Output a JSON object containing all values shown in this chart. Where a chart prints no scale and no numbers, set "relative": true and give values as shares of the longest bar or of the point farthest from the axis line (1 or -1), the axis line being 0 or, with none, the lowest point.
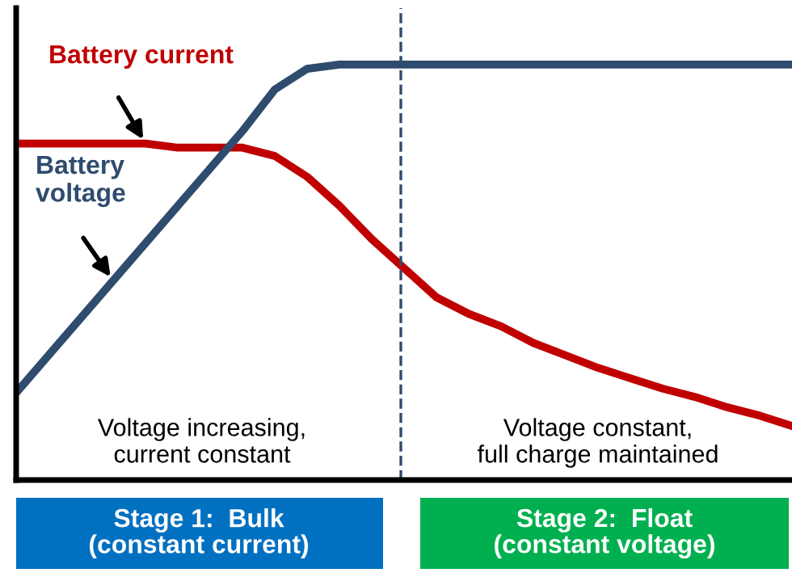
{
  "chart_data": {
    "type": "line",
    "relative": true,
    "marker": "none",
    "line_style": "solid",
    "categories": [
      null,
      null,
      null,
      null,
      null,
      null,
      null,
      null,
      null,
      null,
      null,
      null,
      null,
      null,
      null,
      null,
      null,
      null,
      null,
      null,
      null,
      null,
      null,
      null,
      null
    ],
    "series": [
      {
        "name": "Battery current",
        "color": "#c00000",
        "values": [
          0.81,
          0.81,
          0.81,
          0.81,
          0.81,
          0.8,
          0.8,
          0.8,
          0.78,
          0.73,
          0.66,
          0.58,
          0.51,
          0.44,
          0.4,
          0.37,
          0.33,
          0.3,
          0.27,
          0.245,
          0.22,
          0.2,
          0.175,
          0.155,
          0.13
        ]
      },
      {
        "name": "Battery\nvoltage",
        "color": "#2f4b6e",
        "values": [
          0.21,
          0.3,
          0.39,
          0.48,
          0.57,
          0.66,
          0.75,
          0.84,
          0.94,
          0.99,
          1.0,
          1.0,
          1.0,
          1.0,
          1.0,
          1.0,
          1.0,
          1.0,
          1.0,
          1.0,
          1.0,
          1.0,
          1.0,
          1.0,
          1.0
        ]
      }
    ],
    "annotations": [
      "Voltage increasing,\ncurrent constant",
      "Voltage constant,\nfull charge maintained",
      "Stage 1:  Bulk\n(constant current)",
      "Stage 2:  Float\n(constant voltage)"
    ]
  }
}
